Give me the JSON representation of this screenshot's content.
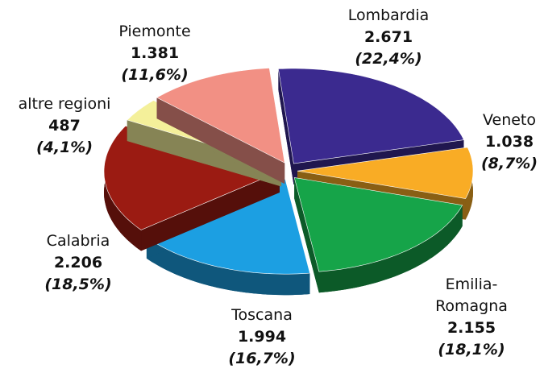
{
  "chart_data": {
    "type": "pie",
    "categories": [
      "Lombardia",
      "Veneto",
      "Emilia-Romagna",
      "Toscana",
      "Calabria",
      "altre regioni",
      "Piemonte"
    ],
    "values": [
      2671,
      1038,
      2155,
      1994,
      2206,
      487,
      1381
    ],
    "value_labels": [
      "2.671",
      "1.038",
      "2.155",
      "1.994",
      "2.206",
      "487",
      "1.381"
    ],
    "percentages": [
      22.4,
      8.7,
      18.1,
      16.7,
      18.5,
      4.1,
      11.6
    ],
    "percentage_labels": [
      "(22,4%)",
      "(8,7%)",
      "(18,1%)",
      "(16,7%)",
      "(18,5%)",
      "(4,1%)",
      "(11,6%)"
    ],
    "colors": [
      "#3b2a8f",
      "#f9ac25",
      "#16a449",
      "#1c9fe2",
      "#9b1b12",
      "#f4f09a",
      "#f29084"
    ]
  }
}
